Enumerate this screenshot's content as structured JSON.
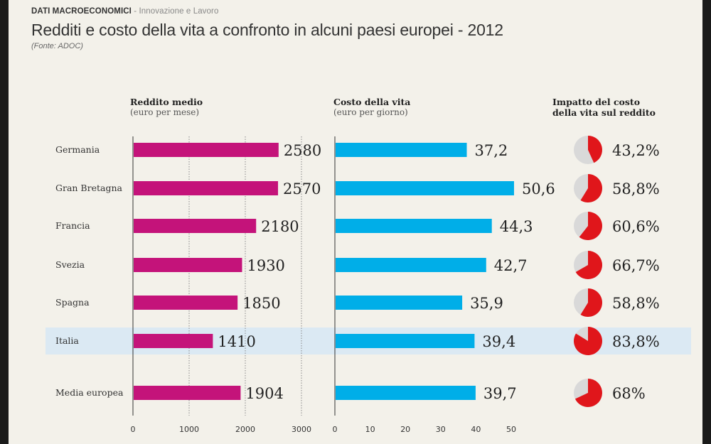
{
  "header": {
    "section_main": "DATI MACROECONOMICI",
    "section_sub": " - Innovazione e Lavoro",
    "title": "Redditi e costo della vita a confronto in alcuni paesi europei - 2012",
    "source": "(Fonte: ADOC)"
  },
  "columns": {
    "income": {
      "title": "Reddito medio",
      "subtitle": "(euro per mese)"
    },
    "cost": {
      "title": "Costo della vita",
      "subtitle": "(euro per giorno)"
    },
    "impact": {
      "title_line1": "Impatto del costo",
      "title_line2": "della vita sul reddito"
    }
  },
  "colors": {
    "income_bar": "#c4137a",
    "cost_bar": "#00aee8",
    "impact_fill": "#e0161b",
    "impact_rest": "#d9d9d9",
    "highlight_row": "#dbe9f3"
  },
  "chart_data": [
    {
      "type": "bar",
      "title": "Reddito medio",
      "subtitle": "(euro per mese)",
      "categories": [
        "Germania",
        "Gran Bretagna",
        "Francia",
        "Svezia",
        "Spagna",
        "Italia",
        "Media europea"
      ],
      "values": [
        2580,
        2570,
        2180,
        1930,
        1850,
        1410,
        1904
      ],
      "value_labels": [
        "2580",
        "2570",
        "2180",
        "1930",
        "1850",
        "1410",
        "1904"
      ],
      "xlim": [
        0,
        3000
      ],
      "ticks": [
        0,
        1000,
        2000,
        3000
      ],
      "grid": true
    },
    {
      "type": "bar",
      "title": "Costo della vita",
      "subtitle": "(euro per giorno)",
      "categories": [
        "Germania",
        "Gran Bretagna",
        "Francia",
        "Svezia",
        "Spagna",
        "Italia",
        "Media europea"
      ],
      "values": [
        37.2,
        50.6,
        44.3,
        42.7,
        35.9,
        39.4,
        39.7
      ],
      "value_labels": [
        "37,2",
        "50,6",
        "44,3",
        "42,7",
        "35,9",
        "39,4",
        "39,7"
      ],
      "xlim": [
        0,
        50
      ],
      "ticks": [
        0,
        10,
        20,
        30,
        40,
        50
      ],
      "grid": false
    },
    {
      "type": "pie",
      "title": "Impatto del costo della vita sul reddito",
      "categories": [
        "Germania",
        "Gran Bretagna",
        "Francia",
        "Svezia",
        "Spagna",
        "Italia",
        "Media europea"
      ],
      "values": [
        43.2,
        58.8,
        60.6,
        66.7,
        58.8,
        83.8,
        68
      ],
      "value_labels": [
        "43,2%",
        "58,8%",
        "60,6%",
        "66,7%",
        "58,8%",
        "83,8%",
        "68%"
      ]
    }
  ],
  "highlighted_category": "Italia"
}
